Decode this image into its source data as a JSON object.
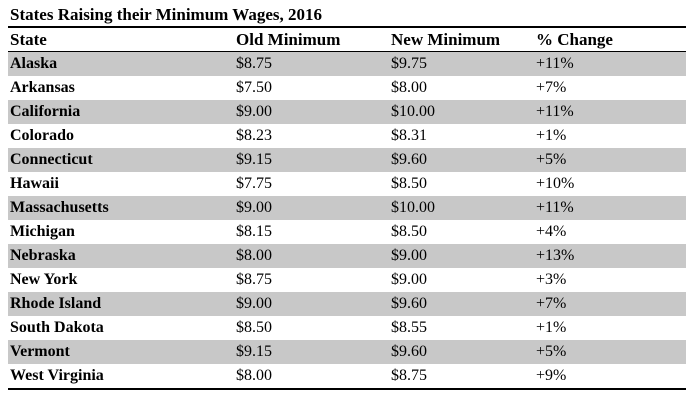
{
  "title": "States Raising their Minimum Wages, 2016",
  "headers": [
    "State",
    "Old Minimum",
    "New Minimum",
    "% Change"
  ],
  "rows": [
    {
      "state": "Alaska",
      "old": "$8.75",
      "new": "$9.75",
      "change": "+11%"
    },
    {
      "state": "Arkansas",
      "old": "$7.50",
      "new": "$8.00",
      "change": "+7%"
    },
    {
      "state": "California",
      "old": "$9.00",
      "new": "$10.00",
      "change": "+11%"
    },
    {
      "state": "Colorado",
      "old": "$8.23",
      "new": "$8.31",
      "change": "+1%"
    },
    {
      "state": "Connecticut",
      "old": "$9.15",
      "new": "$9.60",
      "change": "+5%"
    },
    {
      "state": "Hawaii",
      "old": "$7.75",
      "new": "$8.50",
      "change": "+10%"
    },
    {
      "state": "Massachusetts",
      "old": "$9.00",
      "new": "$10.00",
      "change": "+11%"
    },
    {
      "state": "Michigan",
      "old": "$8.15",
      "new": "$8.50",
      "change": "+4%"
    },
    {
      "state": "Nebraska",
      "old": "$8.00",
      "new": "$9.00",
      "change": "+13%"
    },
    {
      "state": "New York",
      "old": "$8.75",
      "new": "$9.00",
      "change": "+3%"
    },
    {
      "state": "Rhode Island",
      "old": "$9.00",
      "new": "$9.60",
      "change": "+7%"
    },
    {
      "state": "South Dakota",
      "old": "$8.50",
      "new": "$8.55",
      "change": "+1%"
    },
    {
      "state": "Vermont",
      "old": "$9.15",
      "new": "$9.60",
      "change": "+5%"
    },
    {
      "state": "West Virginia",
      "old": "$8.00",
      "new": "$8.75",
      "change": "+9%"
    }
  ],
  "colors": {
    "row_shade": "#c8c8c8",
    "row_plain": "#ffffff",
    "text": "#000000"
  }
}
